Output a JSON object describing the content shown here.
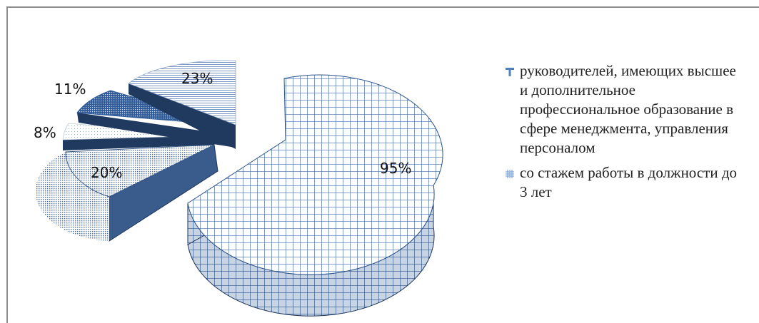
{
  "chart_data": {
    "type": "pie",
    "style": "3d-exploded",
    "slices": [
      {
        "value": 95,
        "label": "95%",
        "fill_pattern": "grid-hatch",
        "color": "#2c5490"
      },
      {
        "value": 20,
        "label": "20%",
        "fill_pattern": "fine-dots",
        "color": "#3a5c8c"
      },
      {
        "value": 8,
        "label": "8%",
        "fill_pattern": "light-dots",
        "color": "#9fb0c8"
      },
      {
        "value": 11,
        "label": "11%",
        "fill_pattern": "dark-dotted",
        "color": "#4a73b4"
      },
      {
        "value": 23,
        "label": "23%",
        "fill_pattern": "horizontal-lines",
        "color": "#6a88b8"
      }
    ],
    "legend": {
      "position": "right",
      "entries": [
        {
          "text": "руководителей, имеющих высшее и дополнительное профессиональное образование в сфере менеджмента, управления персоналом",
          "icon": "letter-T-marker",
          "color": "#4f81bd"
        },
        {
          "text": "со стажем работы в должности до 3 лет",
          "icon": "grid-hatch-marker",
          "color": "#7da7d9"
        }
      ]
    },
    "colors": {
      "side_dark": "#1f3a5e",
      "side_mid": "#3a5c8c",
      "edge": "#1b3358"
    }
  }
}
